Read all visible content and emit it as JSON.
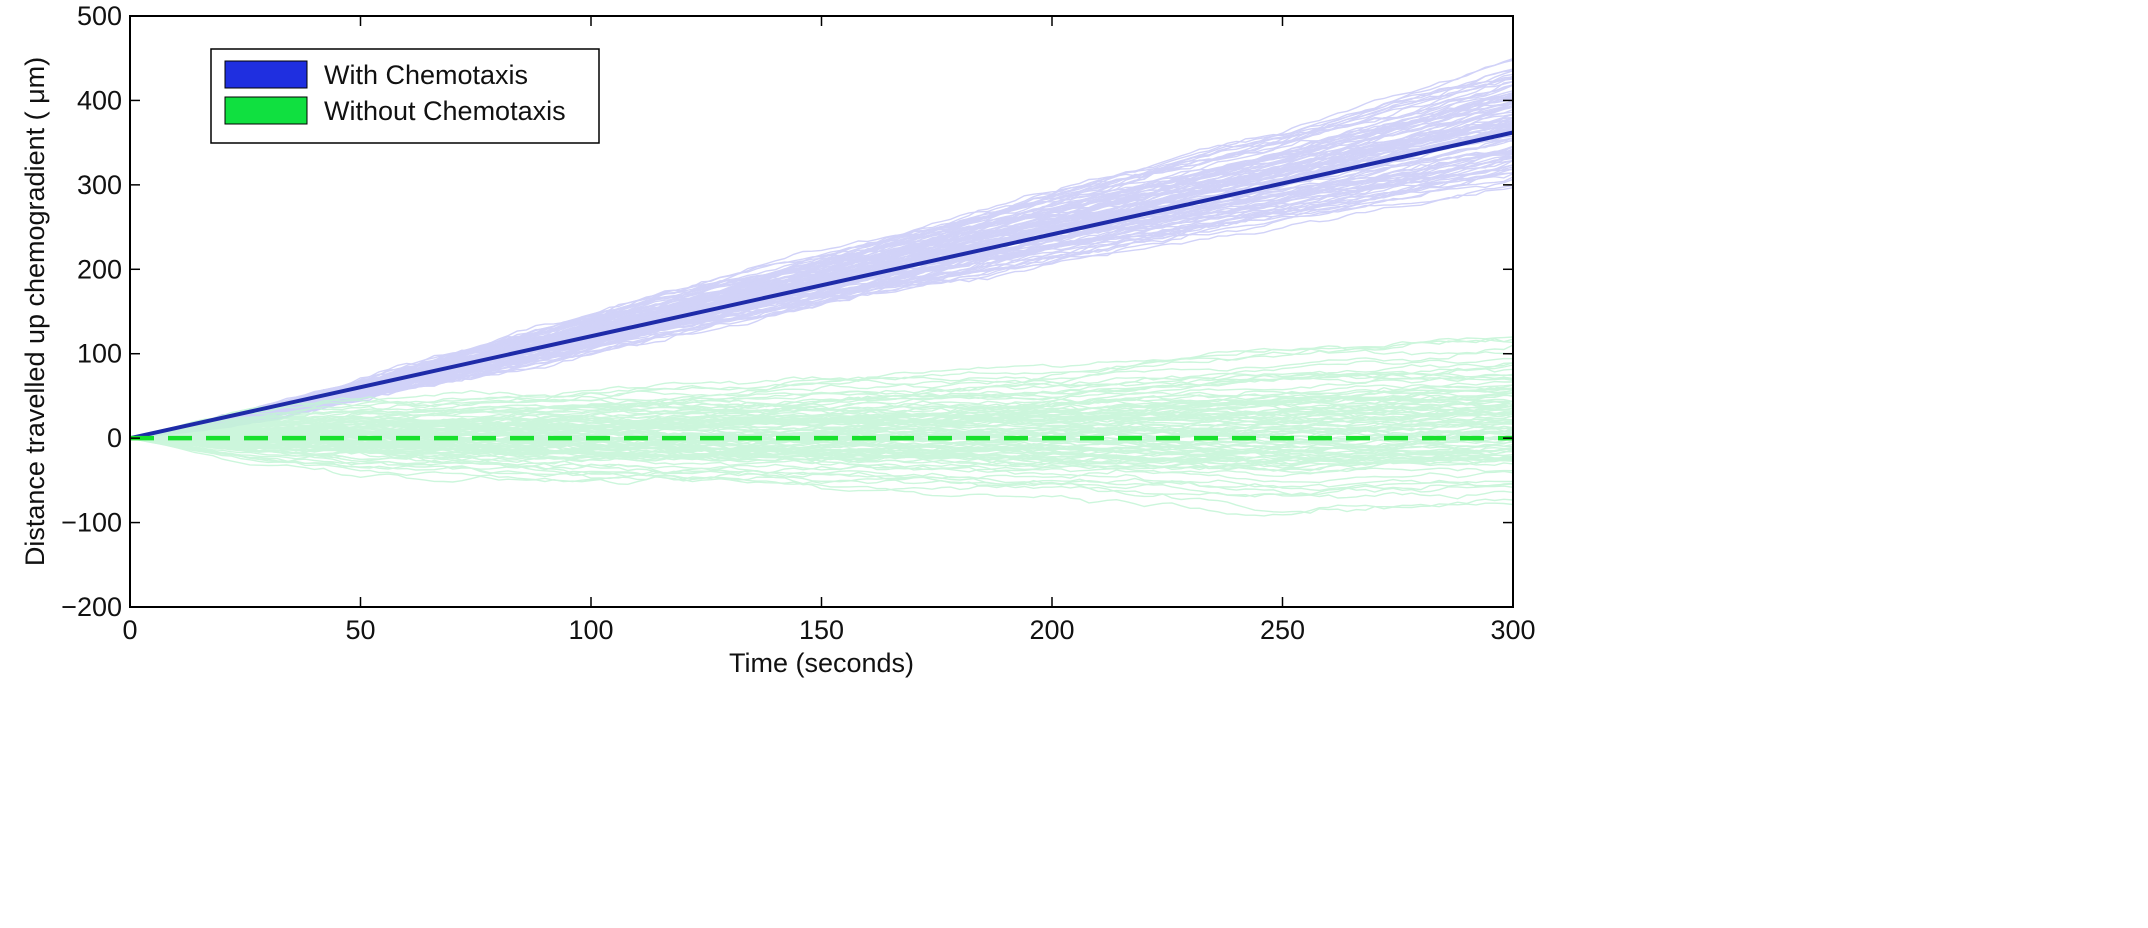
{
  "chart_data": {
    "type": "line",
    "title": "",
    "xlabel": "Time (seconds)",
    "ylabel": "Distance travelled up chemogradient ( μm)",
    "xlim": [
      0,
      300
    ],
    "ylim": [
      -200,
      500
    ],
    "xticks": [
      0,
      50,
      100,
      150,
      200,
      250,
      300
    ],
    "yticks": [
      -200,
      -100,
      0,
      100,
      200,
      300,
      400,
      500
    ],
    "grid": false,
    "legend": {
      "placement": "top-left",
      "entries": [
        {
          "label": "With Chemotaxis",
          "color": "#1f2fe0"
        },
        {
          "label": "Without Chemotaxis",
          "color": "#10e040"
        }
      ]
    },
    "series": [
      {
        "name": "With Chemotaxis",
        "mean_color": "#1e2ba8",
        "trace_color": "#c9cbf7",
        "line_style": "solid",
        "x": [
          0,
          300
        ],
        "mean": [
          0,
          362
        ],
        "band_upper": [
          [
            0,
            0
          ],
          [
            25,
            35
          ],
          [
            50,
            75
          ],
          [
            100,
            160
          ],
          [
            150,
            240
          ],
          [
            200,
            320
          ],
          [
            250,
            400
          ],
          [
            300,
            495
          ]
        ],
        "band_lower": [
          [
            0,
            0
          ],
          [
            25,
            15
          ],
          [
            50,
            40
          ],
          [
            100,
            90
          ],
          [
            150,
            140
          ],
          [
            200,
            185
          ],
          [
            250,
            220
          ],
          [
            300,
            255
          ]
        ]
      },
      {
        "name": "Without Chemotaxis",
        "mean_color": "#17e02c",
        "trace_color": "#c4f5d6",
        "line_style": "dashed",
        "x": [
          0,
          300
        ],
        "mean": [
          0,
          0
        ],
        "band_upper": [
          [
            0,
            0
          ],
          [
            25,
            40
          ],
          [
            50,
            55
          ],
          [
            100,
            70
          ],
          [
            150,
            85
          ],
          [
            200,
            100
          ],
          [
            250,
            130
          ],
          [
            300,
            140
          ]
        ],
        "band_lower": [
          [
            0,
            0
          ],
          [
            25,
            -40
          ],
          [
            50,
            -55
          ],
          [
            100,
            -70
          ],
          [
            150,
            -85
          ],
          [
            200,
            -95
          ],
          [
            250,
            -118
          ],
          [
            300,
            -115
          ]
        ]
      }
    ]
  }
}
